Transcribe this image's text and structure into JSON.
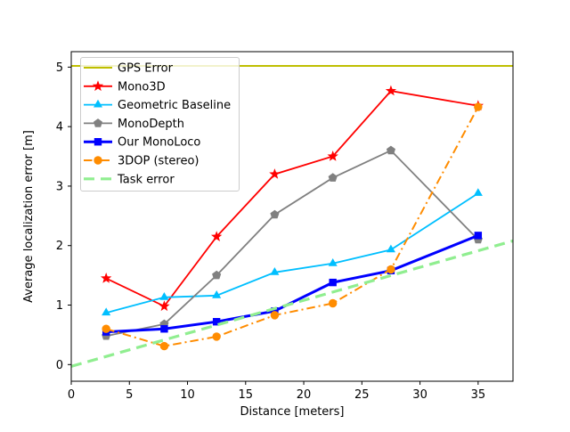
{
  "chart_data": {
    "type": "line",
    "title": "",
    "xlabel": "Distance [meters]",
    "ylabel": "Average localization error [m]",
    "xlim": [
      0,
      38
    ],
    "ylim": [
      -0.28,
      5.26
    ],
    "grid": false,
    "legend_position": "upper left",
    "x_ticks": [
      0,
      5,
      10,
      15,
      20,
      25,
      30,
      35
    ],
    "y_ticks": [
      0,
      1,
      2,
      3,
      4,
      5
    ],
    "distance_bins": [
      3,
      8,
      12.5,
      17.5,
      22.5,
      27.5,
      35
    ],
    "series": [
      {
        "name": "GPS Error",
        "color": "#bfbf00",
        "linestyle": "solid",
        "linewidth": 2,
        "marker": "none",
        "x": [
          0,
          38
        ],
        "y": [
          5.02,
          5.02
        ]
      },
      {
        "name": "Mono3D",
        "color": "#ff0000",
        "linestyle": "solid",
        "linewidth": 1.8,
        "marker": "star",
        "x": [
          3,
          8,
          12.5,
          17.5,
          22.5,
          27.5,
          35
        ],
        "y": [
          1.45,
          0.98,
          2.15,
          3.2,
          3.5,
          4.6,
          4.35
        ]
      },
      {
        "name": "Geometric Baseline",
        "color": "#00bfff",
        "linestyle": "solid",
        "linewidth": 1.8,
        "marker": "triangle",
        "x": [
          3,
          8,
          12.5,
          17.5,
          22.5,
          27.5,
          35
        ],
        "y": [
          0.87,
          1.13,
          1.16,
          1.55,
          1.7,
          1.93,
          2.88
        ]
      },
      {
        "name": "MonoDepth",
        "color": "#808080",
        "linestyle": "solid",
        "linewidth": 1.8,
        "marker": "pentagon",
        "x": [
          3,
          8,
          12.5,
          17.5,
          22.5,
          27.5,
          35
        ],
        "y": [
          0.48,
          0.68,
          1.5,
          2.52,
          3.14,
          3.6,
          2.1
        ]
      },
      {
        "name": "Our MonoLoco",
        "color": "#0000ff",
        "linestyle": "solid",
        "linewidth": 3,
        "marker": "square",
        "x": [
          3,
          8,
          12.5,
          17.5,
          22.5,
          27.5,
          35
        ],
        "y": [
          0.55,
          0.6,
          0.72,
          0.9,
          1.38,
          1.58,
          2.17
        ]
      },
      {
        "name": "3DOP (stereo)",
        "color": "#ff8c00",
        "linestyle": "dashdot",
        "linewidth": 2,
        "marker": "circle",
        "x": [
          3,
          8,
          12.5,
          17.5,
          22.5,
          27.5,
          35
        ],
        "y": [
          0.6,
          0.31,
          0.47,
          0.83,
          1.03,
          1.6,
          4.33
        ]
      },
      {
        "name": "Task error",
        "color": "#90ee90",
        "linestyle": "dashed",
        "linewidth": 3.2,
        "marker": "none",
        "x": [
          0,
          38
        ],
        "y": [
          -0.03,
          2.08
        ]
      }
    ]
  }
}
